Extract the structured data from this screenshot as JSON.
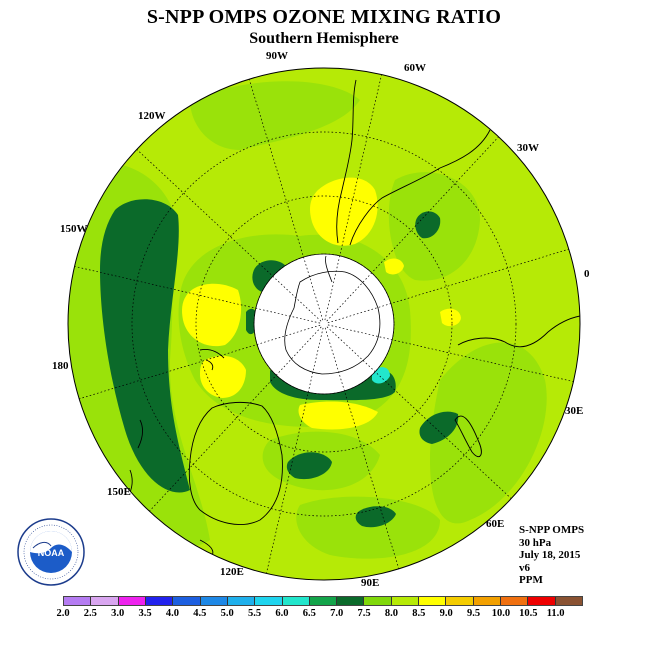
{
  "title": "S-NPP OMPS OZONE MIXING RATIO",
  "subtitle": "Southern Hemisphere",
  "longitude_labels": [
    "90W",
    "60W",
    "30W",
    "0",
    "30E",
    "60E",
    "90E",
    "120E",
    "150E",
    "180",
    "150W",
    "120W"
  ],
  "info": {
    "product": "S-NPP OMPS",
    "level": "30 hPa",
    "date": "July 18, 2015",
    "version": "v6",
    "units": "PPM"
  },
  "logo": {
    "name": "NOAA",
    "icon": "noaa-logo-icon"
  },
  "colorbar": {
    "ticks": [
      "2.0",
      "2.5",
      "3.0",
      "3.5",
      "4.0",
      "4.5",
      "5.0",
      "5.5",
      "6.0",
      "6.5",
      "7.0",
      "7.5",
      "8.0",
      "8.5",
      "9.0",
      "9.5",
      "10.0",
      "10.5",
      "11.0"
    ],
    "colors": [
      "#b57cf2",
      "#d9a6f0",
      "#ee22ee",
      "#2222ee",
      "#1d5fe0",
      "#1e88e6",
      "#1fb0ec",
      "#1fd4ee",
      "#22e6cc",
      "#13a44a",
      "#0b6a2a",
      "#80d80a",
      "#b6ea06",
      "#ffff00",
      "#f4cc00",
      "#f2a000",
      "#f07010",
      "#ee0000",
      "#8a5232"
    ]
  },
  "map_colors": {
    "background": "#b6ea06",
    "level_7_5": "#9ae20a",
    "level_8_5": "#ffff00",
    "level_7_0": "#0b6a2a",
    "level_6_5": "#13a44a",
    "level_6_0": "#22e6cc"
  }
}
